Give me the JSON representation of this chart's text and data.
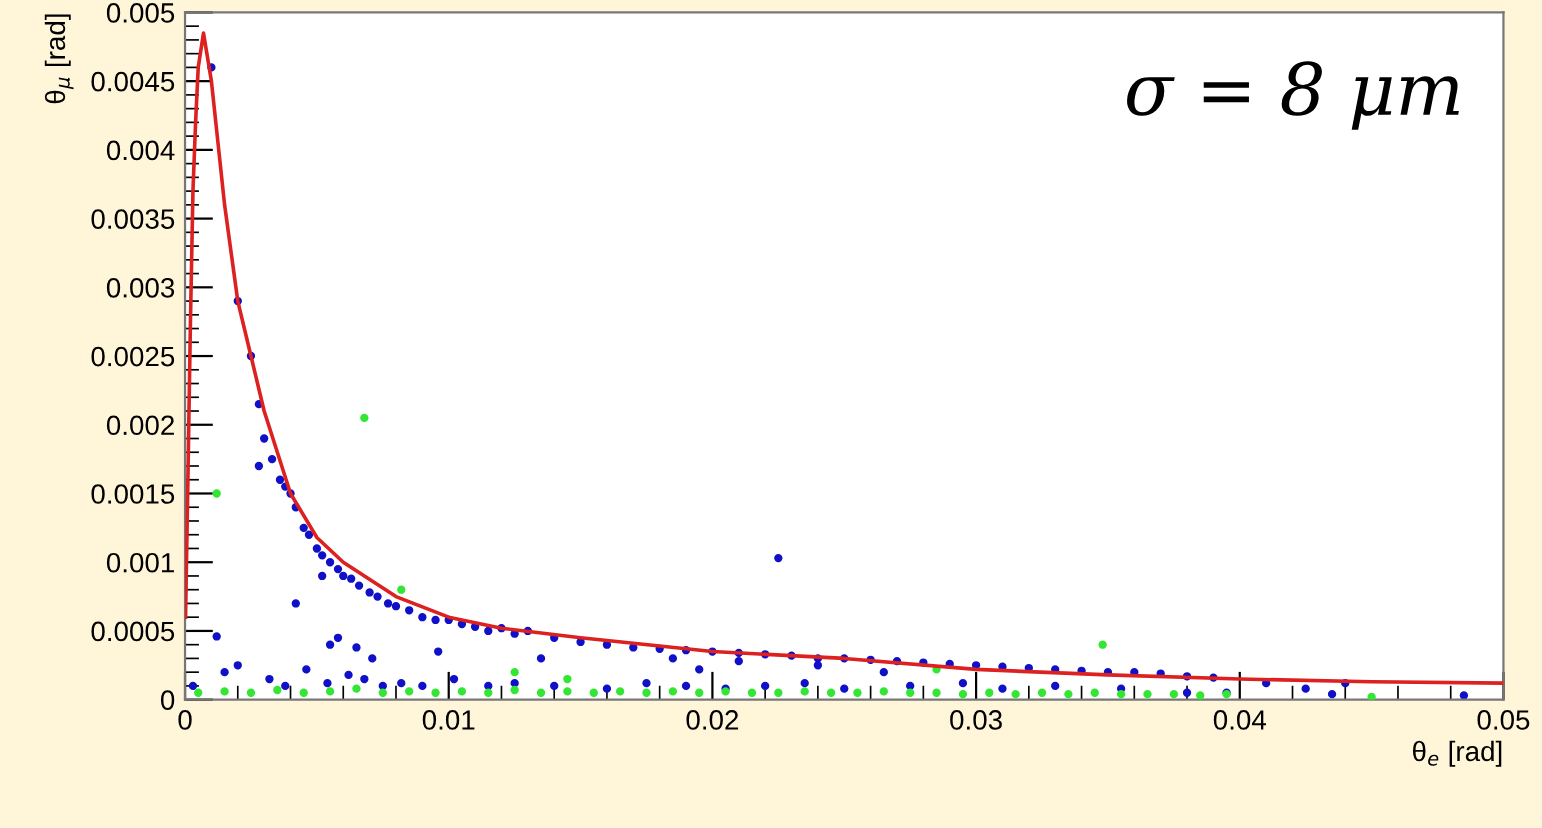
{
  "chart_data": {
    "type": "scatter",
    "xlabel": "θ$_{e}$ [rad]",
    "ylabel": "θ$_{μ}$ [rad]",
    "annotations": [
      "σ = 8 μm"
    ],
    "xlim": [
      0,
      0.05
    ],
    "xticks": [
      0,
      0.01,
      0.02,
      0.03,
      0.04,
      0.05
    ],
    "ylim": [
      0,
      0.005
    ],
    "yticks": [
      0,
      0.0005,
      0.001,
      0.0015,
      0.002,
      0.0025,
      0.003,
      0.0035,
      0.004,
      0.0045,
      0.005
    ],
    "grid": false,
    "legend": false,
    "marker": "circle",
    "series": [
      {
        "color": "#1010c8",
        "x": [
          0.001,
          0.002,
          0.0025,
          0.0028,
          0.003,
          0.0033,
          0.0036,
          0.0038,
          0.004,
          0.0042,
          0.0045,
          0.0047,
          0.005,
          0.0052,
          0.0055,
          0.0058,
          0.006,
          0.0063,
          0.0066,
          0.007,
          0.0073,
          0.0077,
          0.008,
          0.0085,
          0.009,
          0.0095,
          0.01,
          0.0105,
          0.011,
          0.0115,
          0.012,
          0.0125,
          0.013,
          0.014,
          0.015,
          0.016,
          0.017,
          0.018,
          0.019,
          0.02,
          0.021,
          0.022,
          0.023,
          0.024,
          0.025,
          0.026,
          0.027,
          0.028,
          0.029,
          0.03,
          0.031,
          0.032,
          0.033,
          0.034,
          0.035,
          0.036,
          0.037,
          0.038,
          0.039,
          0.041,
          0.044,
          0.0485,
          0.0225,
          0.0012,
          0.0028,
          0.0042,
          0.0052,
          0.0055,
          0.0058,
          0.0065,
          0.0071,
          0.0096,
          0.0135,
          0.0185,
          0.0195,
          0.021,
          0.024,
          0.0265,
          0.0003,
          0.0015,
          0.002,
          0.0032,
          0.0038,
          0.0046,
          0.0054,
          0.0062,
          0.0068,
          0.0075,
          0.0082,
          0.009,
          0.0102,
          0.0115,
          0.0125,
          0.014,
          0.016,
          0.0175,
          0.019,
          0.0205,
          0.022,
          0.0235,
          0.025,
          0.0275,
          0.0295,
          0.031,
          0.033,
          0.0355,
          0.038,
          0.0395,
          0.0425,
          0.0435
        ],
        "values": [
          0.0046,
          0.0029,
          0.0025,
          0.00215,
          0.0019,
          0.00175,
          0.0016,
          0.00155,
          0.0015,
          0.0014,
          0.00125,
          0.0012,
          0.0011,
          0.00105,
          0.001,
          0.00095,
          0.0009,
          0.00088,
          0.00083,
          0.00078,
          0.00075,
          0.0007,
          0.00068,
          0.00065,
          0.0006,
          0.00058,
          0.00058,
          0.00055,
          0.00053,
          0.0005,
          0.00052,
          0.00048,
          0.0005,
          0.00045,
          0.00042,
          0.0004,
          0.00038,
          0.00037,
          0.00036,
          0.00035,
          0.00034,
          0.00033,
          0.00032,
          0.0003,
          0.0003,
          0.00029,
          0.00028,
          0.00027,
          0.00026,
          0.00025,
          0.00024,
          0.00023,
          0.00022,
          0.00021,
          0.0002,
          0.0002,
          0.00019,
          0.00017,
          0.00016,
          0.00012,
          0.00012,
          3e-05,
          0.00103,
          0.00046,
          0.0017,
          0.0007,
          0.0009,
          0.0004,
          0.00045,
          0.00038,
          0.0003,
          0.00035,
          0.0003,
          0.0003,
          0.00022,
          0.00028,
          0.00025,
          0.0002,
          0.0001,
          0.0002,
          0.00025,
          0.00015,
          0.0001,
          0.00022,
          0.00012,
          0.00018,
          0.00015,
          0.0001,
          0.00012,
          0.0001,
          0.00015,
          0.0001,
          0.00012,
          0.0001,
          8e-05,
          0.00012,
          0.0001,
          8e-05,
          0.0001,
          0.00012,
          8e-05,
          0.0001,
          0.00012,
          8e-05,
          0.0001,
          8e-05,
          5e-05,
          5e-05,
          8e-05,
          4e-05
        ]
      },
      {
        "color": "#33e633",
        "x": [
          0.0012,
          0.0068,
          0.0082,
          0.0348,
          0.0005,
          0.0015,
          0.0025,
          0.0035,
          0.0045,
          0.0055,
          0.0065,
          0.0075,
          0.0085,
          0.0095,
          0.0105,
          0.0115,
          0.0125,
          0.0135,
          0.0145,
          0.0155,
          0.0165,
          0.0175,
          0.0185,
          0.0195,
          0.0205,
          0.0215,
          0.0225,
          0.0235,
          0.0245,
          0.0255,
          0.0265,
          0.0275,
          0.0285,
          0.0295,
          0.0305,
          0.0315,
          0.0325,
          0.0335,
          0.0345,
          0.0355,
          0.0365,
          0.0375,
          0.0385,
          0.0395,
          0.045,
          0.0125,
          0.0145,
          0.0285
        ],
        "values": [
          0.0015,
          0.00205,
          0.0008,
          0.0004,
          5e-05,
          6e-05,
          5e-05,
          7e-05,
          5e-05,
          6e-05,
          8e-05,
          5e-05,
          6e-05,
          5e-05,
          6e-05,
          5e-05,
          7e-05,
          5e-05,
          6e-05,
          5e-05,
          6e-05,
          5e-05,
          6e-05,
          5e-05,
          6e-05,
          5e-05,
          5e-05,
          6e-05,
          5e-05,
          5e-05,
          6e-05,
          5e-05,
          5e-05,
          4e-05,
          5e-05,
          4e-05,
          5e-05,
          4e-05,
          5e-05,
          4e-05,
          4e-05,
          4e-05,
          3e-05,
          4e-05,
          2e-05,
          0.0002,
          0.00015,
          0.00022
        ]
      },
      {
        "type": "line",
        "color": "#dd2020",
        "marker": "none",
        "x": [
          2e-05,
          0.0001,
          0.0002,
          0.0003,
          0.0004,
          0.0005,
          0.0007,
          0.001,
          0.0015,
          0.002,
          0.0025,
          0.003,
          0.004,
          0.005,
          0.006,
          0.008,
          0.01,
          0.012,
          0.015,
          0.02,
          0.025,
          0.03,
          0.035,
          0.04,
          0.045,
          0.05
        ],
        "values": [
          0.0006,
          0.0015,
          0.0027,
          0.0037,
          0.0042,
          0.0046,
          0.00485,
          0.0045,
          0.0036,
          0.0029,
          0.0025,
          0.0021,
          0.0015,
          0.00118,
          0.001,
          0.00075,
          0.0006,
          0.00052,
          0.00045,
          0.00035,
          0.0003,
          0.00022,
          0.00018,
          0.00015,
          0.00013,
          0.00012
        ]
      }
    ]
  }
}
